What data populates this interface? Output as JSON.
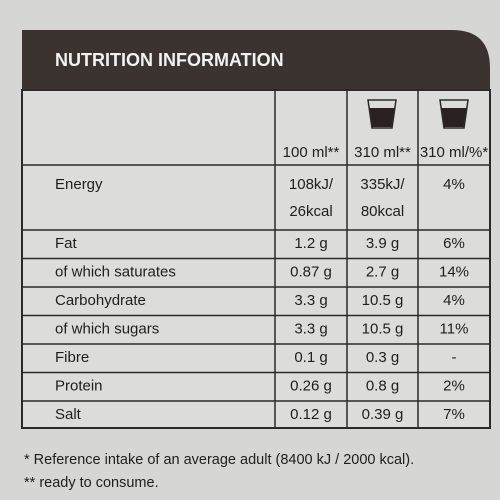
{
  "header": {
    "title": "NUTRITION INFORMATION"
  },
  "table": {
    "columns": [
      "100 ml**",
      "310 ml**",
      "310 ml/%*"
    ],
    "rows": [
      [
        "Energy",
        [
          "108kJ/",
          "26kcal"
        ],
        [
          "335kJ/",
          "80kcal"
        ],
        "4%"
      ],
      [
        "Fat",
        "1.2 g",
        "3.9 g",
        "6%"
      ],
      [
        "of which saturates",
        "0.87 g",
        "2.7 g",
        "14%"
      ],
      [
        "Carbohydrate",
        "3.3 g",
        "10.5 g",
        "4%"
      ],
      [
        "of which sugars",
        "3.3 g",
        "10.5 g",
        "11%"
      ],
      [
        "Fibre",
        "0.1 g",
        "0.3 g",
        "-"
      ],
      [
        "Protein",
        "0.26 g",
        "0.8 g",
        "2%"
      ],
      [
        "Salt",
        "0.12 g",
        "0.39 g",
        "7%"
      ]
    ]
  },
  "footnotes": [
    "* Reference intake of an average adult (8400 kJ / 2000 kcal).",
    "** ready to consume."
  ]
}
